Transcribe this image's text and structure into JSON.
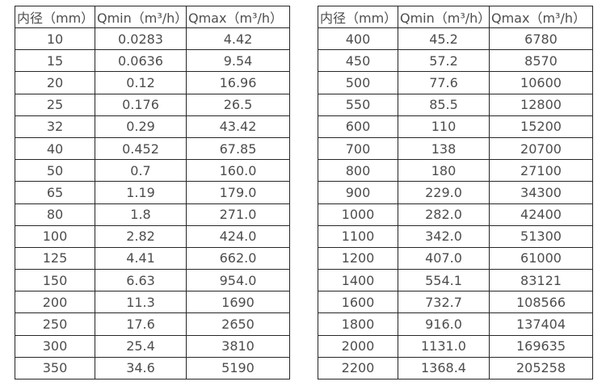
{
  "page": {
    "background_color": "#ffffff",
    "border_color": "#262626",
    "text_color": "#4d4d4d"
  },
  "tables": [
    {
      "name": "flow-table-small-diameter",
      "headers": [
        "内径（mm）",
        "Qmin（m³/h）",
        "Qmax（m³/h）"
      ],
      "rows": [
        [
          "10",
          "0.0283",
          "4.42"
        ],
        [
          "15",
          "0.0636",
          "9.54"
        ],
        [
          "20",
          "0.12",
          "16.96"
        ],
        [
          "25",
          "0.176",
          "26.5"
        ],
        [
          "32",
          "0.29",
          "43.42"
        ],
        [
          "40",
          "0.452",
          "67.85"
        ],
        [
          "50",
          "0.7",
          "160.0"
        ],
        [
          "65",
          "1.19",
          "179.0"
        ],
        [
          "80",
          "1.8",
          "271.0"
        ],
        [
          "100",
          "2.82",
          "424.0"
        ],
        [
          "125",
          "4.41",
          "662.0"
        ],
        [
          "150",
          "6.63",
          "954.0"
        ],
        [
          "200",
          "11.3",
          "1690"
        ],
        [
          "250",
          "17.6",
          "2650"
        ],
        [
          "300",
          "25.4",
          "3810"
        ],
        [
          "350",
          "34.6",
          "5190"
        ]
      ]
    },
    {
      "name": "flow-table-large-diameter",
      "headers": [
        "内径（mm）",
        "Qmin（m³/h）",
        "Qmax（m³/h）"
      ],
      "rows": [
        [
          "400",
          "45.2",
          "6780"
        ],
        [
          "450",
          "57.2",
          "8570"
        ],
        [
          "500",
          "77.6",
          "10600"
        ],
        [
          "550",
          "85.5",
          "12800"
        ],
        [
          "600",
          "110",
          "15200"
        ],
        [
          "700",
          "138",
          "20700"
        ],
        [
          "800",
          "180",
          "27100"
        ],
        [
          "900",
          "229.0",
          "34300"
        ],
        [
          "1000",
          "282.0",
          "42400"
        ],
        [
          "1100",
          "342.0",
          "51300"
        ],
        [
          "1200",
          "407.0",
          "61000"
        ],
        [
          "1400",
          "554.1",
          "83121"
        ],
        [
          "1600",
          "732.7",
          "108566"
        ],
        [
          "1800",
          "916.0",
          "137404"
        ],
        [
          "2000",
          "1131.0",
          "169635"
        ],
        [
          "2200",
          "1368.4",
          "205258"
        ]
      ]
    }
  ]
}
